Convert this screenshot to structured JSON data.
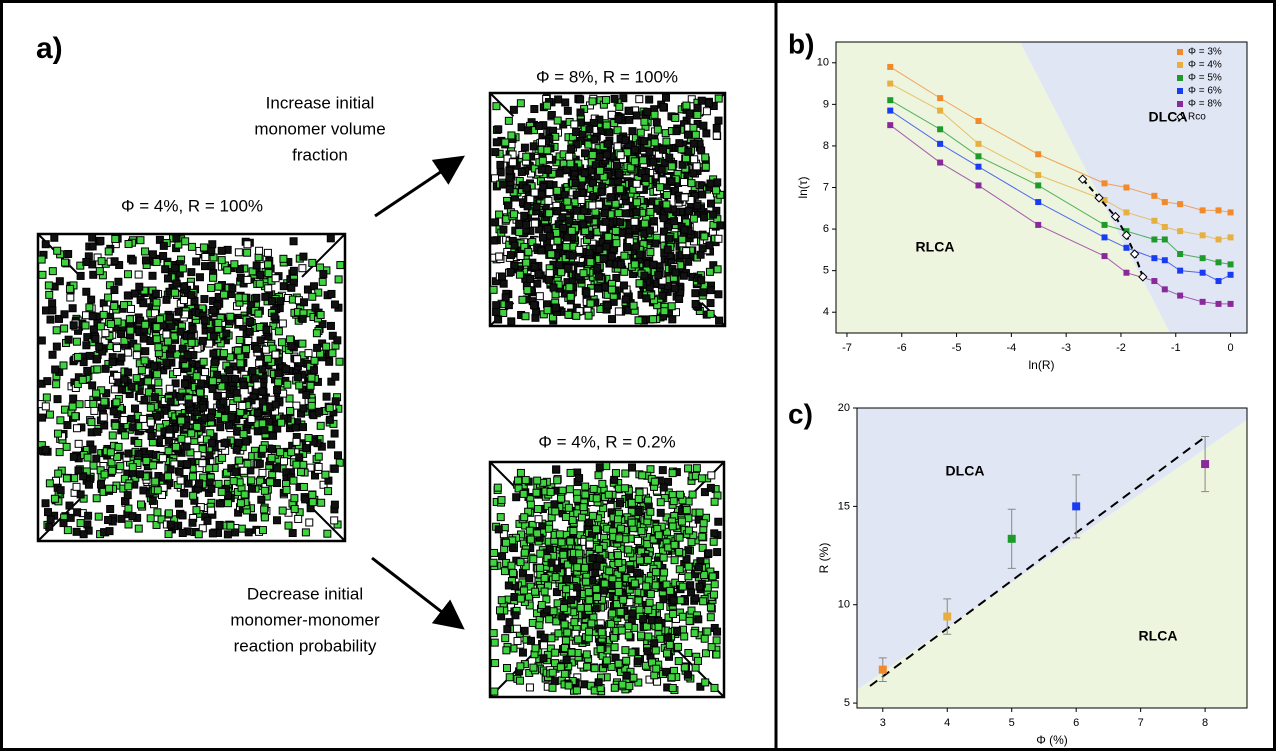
{
  "panel_a": {
    "label": "a)",
    "top_title": "Φ = 8%, R = 100%",
    "left_title": "Φ = 4%, R = 100%",
    "bottom_title": "Φ = 4%, R = 0.2%",
    "top_arrow_text": [
      "Increase initial",
      "monomer volume",
      "fraction"
    ],
    "bottom_arrow_text": [
      "Decrease initial",
      "monomer-monomer",
      "reaction probability"
    ]
  },
  "chart_data": [
    {
      "type": "line",
      "panel_label": "b)",
      "xlabel": "ln(R)",
      "ylabel": "ln(τ)",
      "annotations": [
        "DLCA",
        "RLCA"
      ],
      "x": [
        -6.21,
        -5.3,
        -4.6,
        -3.51,
        -2.3,
        -1.9,
        -1.39,
        -1.2,
        -0.92,
        -0.51,
        -0.22,
        0
      ],
      "xlim": [
        -7.2,
        0.3
      ],
      "xticks": [
        -7,
        -6,
        -5,
        -4,
        -3,
        -2,
        -1,
        0
      ],
      "ylim": [
        3.5,
        10.5
      ],
      "yticks": [
        4,
        5,
        6,
        7,
        8,
        9,
        10
      ],
      "legend": "upper right",
      "series": [
        {
          "name": "Φ = 3%",
          "color": "#f08a2a",
          "values": [
            9.9,
            9.15,
            8.6,
            7.8,
            7.1,
            7.0,
            6.8,
            6.65,
            6.6,
            6.45,
            6.45,
            6.4
          ]
        },
        {
          "name": "Φ = 4%",
          "color": "#e6b040",
          "values": [
            9.5,
            8.85,
            8.05,
            7.3,
            6.7,
            6.4,
            6.2,
            6.05,
            5.95,
            5.85,
            5.75,
            5.8
          ]
        },
        {
          "name": "Φ = 5%",
          "color": "#1e9a2a",
          "values": [
            9.1,
            8.4,
            7.75,
            7.05,
            6.1,
            5.95,
            5.75,
            5.75,
            5.4,
            5.3,
            5.2,
            5.15
          ]
        },
        {
          "name": "Φ = 6%",
          "color": "#1a3cf0",
          "values": [
            8.85,
            8.05,
            7.5,
            6.65,
            5.8,
            5.55,
            5.3,
            5.25,
            5.0,
            4.95,
            4.75,
            4.9
          ]
        },
        {
          "name": "Φ = 8%",
          "color": "#8a2a9a",
          "values": [
            8.5,
            7.6,
            7.05,
            6.1,
            5.35,
            4.95,
            4.75,
            4.55,
            4.4,
            4.25,
            4.2,
            4.2
          ]
        },
        {
          "name": "Rco",
          "color": "#000000",
          "marker": "diamond",
          "x": [
            -2.7,
            -2.4,
            -2.1,
            -1.9,
            -1.75,
            -1.6
          ],
          "values": [
            7.2,
            6.75,
            6.3,
            5.85,
            5.4,
            4.85
          ]
        }
      ]
    },
    {
      "type": "scatter",
      "panel_label": "c)",
      "xlabel": "Φ (%)",
      "ylabel": "R (%)",
      "annotations": [
        "DLCA",
        "RLCA"
      ],
      "x": [
        3,
        4,
        5,
        6,
        8
      ],
      "values": [
        6.7,
        9.4,
        13.35,
        15.0,
        17.15
      ],
      "errors": [
        0.6,
        0.9,
        1.5,
        1.6,
        1.4
      ],
      "colors": [
        "#f08a2a",
        "#e6b040",
        "#1e9a2a",
        "#1a3cf0",
        "#8a2a9a"
      ],
      "xlim": [
        2.6,
        8.65
      ],
      "xticks": [
        3,
        4,
        5,
        6,
        7,
        8
      ],
      "ylim": [
        4.75,
        20
      ],
      "yticks": [
        5,
        10,
        15,
        20
      ]
    }
  ]
}
